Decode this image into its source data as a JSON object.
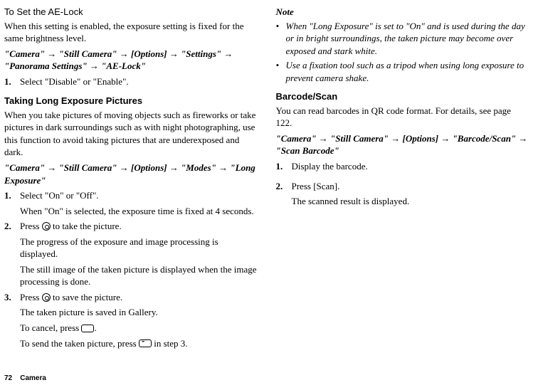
{
  "left": {
    "aelock": {
      "title": "To Set the AE-Lock",
      "desc": "When this setting is enabled, the exposure setting is fixed for the same brightness level.",
      "path_parts": [
        "\"Camera\"",
        "\"Still Camera\"",
        "[Options]",
        "\"Settings\"",
        "\"Panorama Settings\"",
        "\"AE-Lock\""
      ],
      "step1": "Select \"Disable\" or \"Enable\"."
    },
    "longexp": {
      "title": "Taking Long Exposure Pictures",
      "desc": "When you take pictures of moving objects such as fireworks or take pictures in dark surroundings such as with night photographing, use this function to avoid taking pictures that are underexposed and dark.",
      "path_parts": [
        "\"Camera\"",
        "\"Still Camera\"",
        "[Options]",
        "\"Modes\"",
        "\"Long Exposure\""
      ],
      "step1": "Select \"On\" or \"Off\".",
      "step1_sub": "When \"On\" is selected, the exposure time is fixed at 4 seconds.",
      "step2_pre": "Press ",
      "step2_post": " to take the picture.",
      "step2_sub1": "The progress of the exposure and image processing is displayed.",
      "step2_sub2": "The still image of the taken picture is displayed when the image processing is done.",
      "step3_pre": "Press ",
      "step3_post": " to save the picture.",
      "step3_sub1": "The taken picture is saved in Gallery.",
      "step3_sub2_pre": "To cancel, press ",
      "step3_sub2_post": ".",
      "step3_sub3_pre": "To send the taken picture, press ",
      "step3_sub3_post": " in step 3."
    }
  },
  "right": {
    "note": {
      "label": "Note",
      "b1": "When \"Long Exposure\" is set to \"On\" and is used during the day or in bright surroundings, the taken picture may become over exposed and stark white.",
      "b2": "Use a fixation tool such as a tripod when using long exposure to prevent camera shake."
    },
    "barcode": {
      "title": "Barcode/Scan",
      "desc": "You can read barcodes in QR code format. For details, see page 122.",
      "path_parts": [
        "\"Camera\"",
        "\"Still Camera\"",
        "[Options]",
        "\"Barcode/Scan\"",
        "\"Scan Barcode\""
      ],
      "step1": "Display the barcode.",
      "step2": "Press [Scan].",
      "step2_sub": "The scanned result is displayed."
    }
  },
  "footer": {
    "page": "72",
    "section": "Camera"
  }
}
